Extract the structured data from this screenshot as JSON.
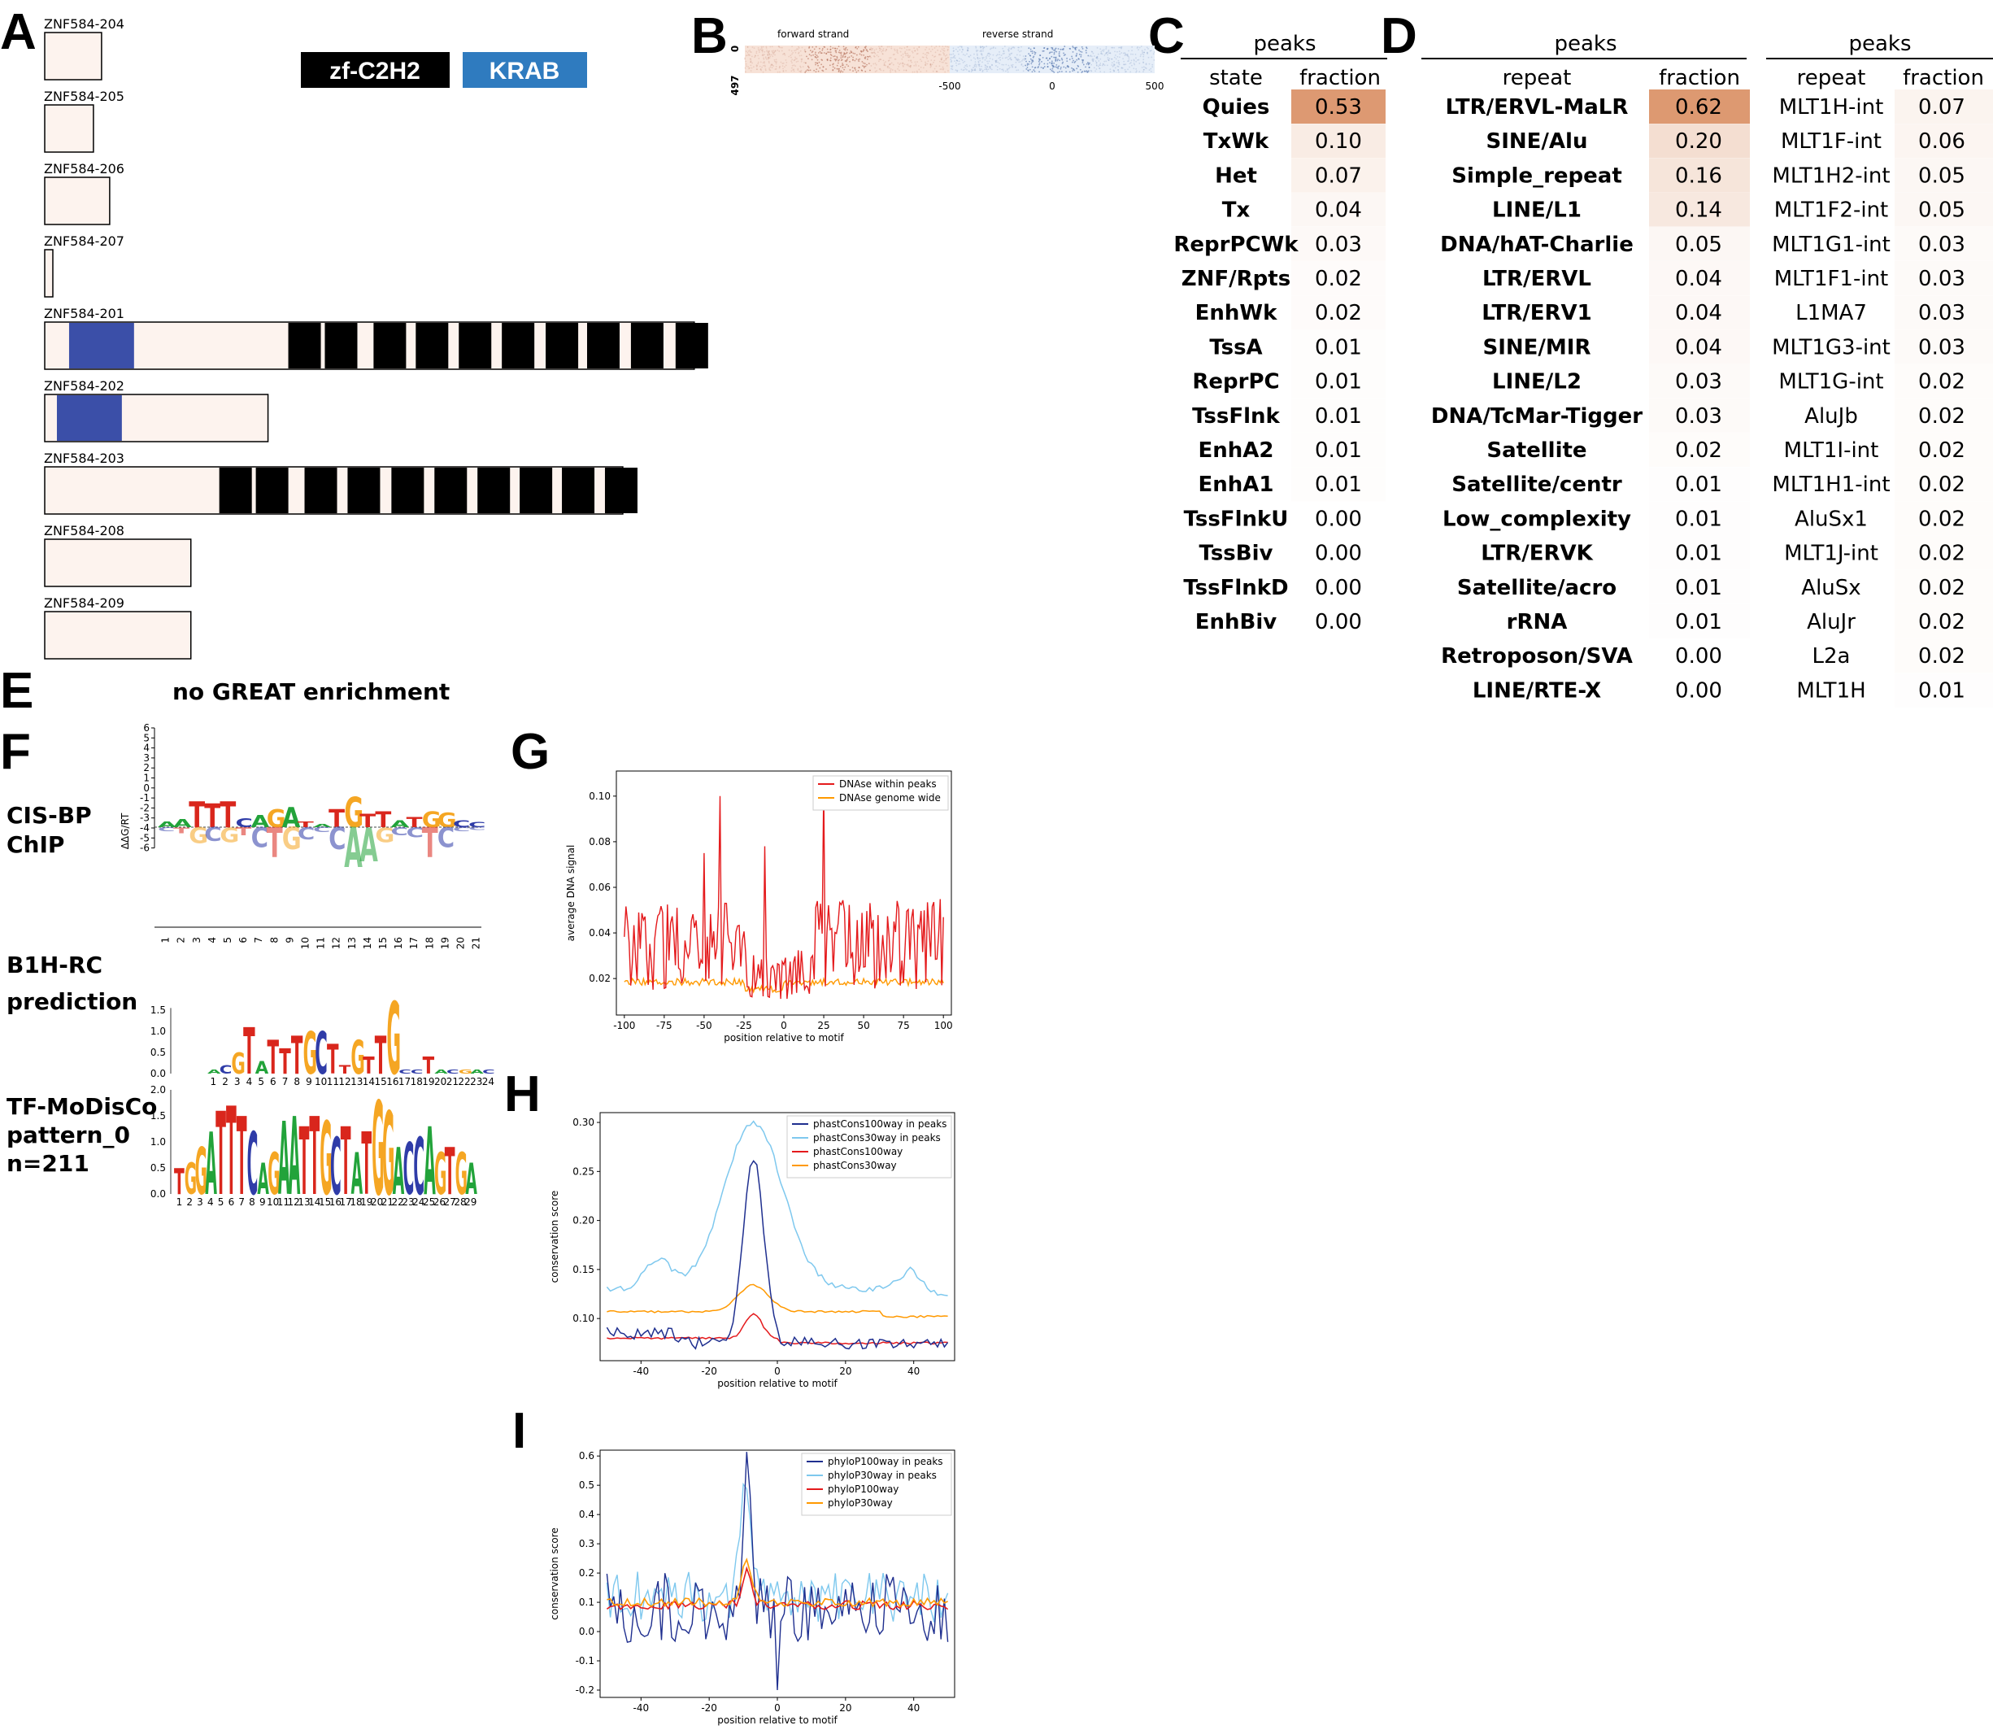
{
  "panels": {
    "A": "A",
    "B": "B",
    "C": "C",
    "D": "D",
    "E": "E",
    "F": "F",
    "G": "G",
    "H": "H",
    "I": "I"
  },
  "panelA": {
    "domain_legend": [
      {
        "name": "zf-C2H2",
        "color": "#000000"
      },
      {
        "name": "KRAB",
        "color": "#2f7bbf"
      }
    ],
    "isoforms": [
      {
        "name": "ZNF584-204",
        "length": 70
      },
      {
        "name": "ZNF584-205",
        "length": 60
      },
      {
        "name": "ZNF584-206",
        "length": 80
      },
      {
        "name": "ZNF584-207",
        "length": 10
      },
      {
        "name": "ZNF584-201",
        "length": 800,
        "krab": [
          30,
          110
        ],
        "zf": [
          300,
          345,
          405,
          457,
          510,
          563,
          617,
          668,
          722,
          777
        ]
      },
      {
        "name": "ZNF584-202",
        "length": 275,
        "krab": [
          15,
          95
        ]
      },
      {
        "name": "ZNF584-203",
        "length": 712,
        "zf": [
          215,
          260,
          320,
          373,
          427,
          480,
          533,
          585,
          637,
          690
        ]
      },
      {
        "name": "ZNF584-208",
        "length": 180
      },
      {
        "name": "ZNF584-209",
        "length": 180
      }
    ],
    "colors": {
      "fill": "#fdf3ee",
      "krab": "#3b4fa8",
      "zf": "#000000"
    }
  },
  "panelB": {
    "forward": "forward strand",
    "reverse": "reverse strand",
    "y_top": "0",
    "y_bottom": "497",
    "x_ticks": [
      "-500",
      "0",
      "500"
    ]
  },
  "panelC": {
    "header": "peaks",
    "col1": "state",
    "col2": "fraction",
    "rows": [
      {
        "state": "Quies",
        "fraction": "0.53",
        "v": 0.53
      },
      {
        "state": "TxWk",
        "fraction": "0.10",
        "v": 0.1
      },
      {
        "state": "Het",
        "fraction": "0.07",
        "v": 0.07
      },
      {
        "state": "Tx",
        "fraction": "0.04",
        "v": 0.04
      },
      {
        "state": "ReprPCWk",
        "fraction": "0.03",
        "v": 0.03
      },
      {
        "state": "ZNF/Rpts",
        "fraction": "0.02",
        "v": 0.02
      },
      {
        "state": "EnhWk",
        "fraction": "0.02",
        "v": 0.02
      },
      {
        "state": "TssA",
        "fraction": "0.01",
        "v": 0.01
      },
      {
        "state": "ReprPC",
        "fraction": "0.01",
        "v": 0.01
      },
      {
        "state": "TssFlnk",
        "fraction": "0.01",
        "v": 0.01
      },
      {
        "state": "EnhA2",
        "fraction": "0.01",
        "v": 0.01
      },
      {
        "state": "EnhA1",
        "fraction": "0.01",
        "v": 0.01
      },
      {
        "state": "TssFlnkU",
        "fraction": "0.00",
        "v": 0.0
      },
      {
        "state": "TssBiv",
        "fraction": "0.00",
        "v": 0.0
      },
      {
        "state": "TssFlnkD",
        "fraction": "0.00",
        "v": 0.0
      },
      {
        "state": "EnhBiv",
        "fraction": "0.00",
        "v": 0.0
      }
    ]
  },
  "panelD": {
    "header": "peaks",
    "col1": "repeat",
    "col2": "fraction",
    "families": [
      {
        "name": "LTR/ERVL-MaLR",
        "fraction": "0.62",
        "v": 0.62
      },
      {
        "name": "SINE/Alu",
        "fraction": "0.20",
        "v": 0.2
      },
      {
        "name": "Simple_repeat",
        "fraction": "0.16",
        "v": 0.16
      },
      {
        "name": "LINE/L1",
        "fraction": "0.14",
        "v": 0.14
      },
      {
        "name": "DNA/hAT-Charlie",
        "fraction": "0.05",
        "v": 0.05
      },
      {
        "name": "LTR/ERVL",
        "fraction": "0.04",
        "v": 0.04
      },
      {
        "name": "LTR/ERV1",
        "fraction": "0.04",
        "v": 0.04
      },
      {
        "name": "SINE/MIR",
        "fraction": "0.04",
        "v": 0.04
      },
      {
        "name": "LINE/L2",
        "fraction": "0.03",
        "v": 0.03
      },
      {
        "name": "DNA/TcMar-Tigger",
        "fraction": "0.03",
        "v": 0.03
      },
      {
        "name": "Satellite",
        "fraction": "0.02",
        "v": 0.02
      },
      {
        "name": "Satellite/centr",
        "fraction": "0.01",
        "v": 0.01
      },
      {
        "name": "Low_complexity",
        "fraction": "0.01",
        "v": 0.01
      },
      {
        "name": "LTR/ERVK",
        "fraction": "0.01",
        "v": 0.01
      },
      {
        "name": "Satellite/acro",
        "fraction": "0.01",
        "v": 0.01
      },
      {
        "name": "rRNA",
        "fraction": "0.01",
        "v": 0.01
      },
      {
        "name": "Retroposon/SVA",
        "fraction": "0.00",
        "v": 0.0
      },
      {
        "name": "LINE/RTE-X",
        "fraction": "0.00",
        "v": 0.0
      }
    ],
    "header2": "peaks",
    "col3": "repeat",
    "col4": "fraction",
    "subfamilies": [
      {
        "name": "MLT1H-int",
        "fraction": "0.07",
        "v": 0.07
      },
      {
        "name": "MLT1F-int",
        "fraction": "0.06",
        "v": 0.06
      },
      {
        "name": "MLT1H2-int",
        "fraction": "0.05",
        "v": 0.05
      },
      {
        "name": "MLT1F2-int",
        "fraction": "0.05",
        "v": 0.05
      },
      {
        "name": "MLT1G1-int",
        "fraction": "0.03",
        "v": 0.03
      },
      {
        "name": "MLT1F1-int",
        "fraction": "0.03",
        "v": 0.03
      },
      {
        "name": "L1MA7",
        "fraction": "0.03",
        "v": 0.03
      },
      {
        "name": "MLT1G3-int",
        "fraction": "0.03",
        "v": 0.03
      },
      {
        "name": "MLT1G-int",
        "fraction": "0.02",
        "v": 0.02
      },
      {
        "name": "AluJb",
        "fraction": "0.02",
        "v": 0.02
      },
      {
        "name": "MLT1I-int",
        "fraction": "0.02",
        "v": 0.02
      },
      {
        "name": "MLT1H1-int",
        "fraction": "0.02",
        "v": 0.02
      },
      {
        "name": "AluSx1",
        "fraction": "0.02",
        "v": 0.02
      },
      {
        "name": "MLT1J-int",
        "fraction": "0.02",
        "v": 0.02
      },
      {
        "name": "AluSx",
        "fraction": "0.02",
        "v": 0.02
      },
      {
        "name": "AluJr",
        "fraction": "0.02",
        "v": 0.02
      },
      {
        "name": "L2a",
        "fraction": "0.02",
        "v": 0.02
      },
      {
        "name": "MLT1H",
        "fraction": "0.01",
        "v": 0.01
      }
    ]
  },
  "panelE": {
    "text": "no GREAT enrichment"
  },
  "panelF": {
    "cisbp_label": [
      "CIS-BP",
      "ChIP"
    ],
    "cisbp_ylabel": "ΔΔG/RT",
    "cisbp_yticks": [
      "6",
      "5",
      "4",
      "3",
      "2",
      "1",
      "0",
      "-1",
      "-2",
      "-3",
      "-4",
      "-5",
      "-6"
    ],
    "cisbp_xticks": [
      "1",
      "2",
      "3",
      "4",
      "5",
      "6",
      "7",
      "8",
      "9",
      "10",
      "11",
      "12",
      "13",
      "14",
      "15",
      "16",
      "17",
      "18",
      "19",
      "20",
      "21"
    ],
    "cisbp_top": [
      "A",
      "A",
      "T",
      "T",
      "T",
      "C",
      "A",
      "G",
      "A",
      "T",
      "A",
      "T",
      "G",
      "T",
      "T",
      "A",
      "T",
      "G",
      "G",
      "C",
      "C"
    ],
    "cisbp_topH": [
      0.6,
      0.8,
      2.6,
      2.4,
      2.6,
      0.9,
      1.2,
      1.8,
      2.0,
      0.6,
      0.3,
      1.8,
      3.0,
      1.3,
      1.6,
      0.7,
      1.0,
      1.6,
      1.5,
      0.7,
      0.5
    ],
    "cisbp_topCols": [
      "A",
      "A",
      "T",
      "T",
      "T",
      "C",
      "A",
      "G",
      "A",
      "T",
      "A",
      "T",
      "G",
      "T",
      "T",
      "A",
      "T",
      "G",
      "G",
      "C",
      "C"
    ],
    "b1h_label": [
      "B1H-RC",
      "prediction"
    ],
    "b1h_yticks": [
      "1.5",
      "1.0",
      "0.5",
      "0.0"
    ],
    "b1h_xticks": [
      "1",
      "2",
      "3",
      "4",
      "5",
      "6",
      "7",
      "8",
      "9",
      "10",
      "11",
      "12",
      "13",
      "14",
      "15",
      "16",
      "17",
      "18",
      "19",
      "20",
      "21",
      "22",
      "23",
      "24"
    ],
    "modisco_label": [
      "TF-MoDisCo",
      "pattern_0",
      "n=211"
    ],
    "modisco_yticks": [
      "2.0",
      "1.5",
      "1.0",
      "0.5",
      "0.0"
    ],
    "modisco_xticks": [
      "1",
      "2",
      "3",
      "4",
      "5",
      "6",
      "7",
      "8",
      "9",
      "10",
      "11",
      "12",
      "13",
      "14",
      "15",
      "16",
      "17",
      "18",
      "19",
      "20",
      "21",
      "22",
      "23",
      "24",
      "25",
      "26",
      "27",
      "28",
      "29"
    ]
  },
  "panelG": {
    "legend": [
      "DNAse within peaks",
      "DNAse genome wide"
    ],
    "ylabel": "average DNA signal",
    "xlabel": "position relative to motif",
    "yticks": [
      "0.10",
      "0.08",
      "0.06",
      "0.04",
      "0.02"
    ],
    "xticks": [
      "-100",
      "-75",
      "-50",
      "-25",
      "0",
      "25",
      "50",
      "75",
      "100"
    ]
  },
  "panelH": {
    "legend": [
      "phastCons100way in peaks",
      "phastCons30way in peaks",
      "phastCons100way",
      "phastCons30way"
    ],
    "ylabel": "conservation score",
    "xlabel": "position relative to motif",
    "yticks": [
      "0.30",
      "0.25",
      "0.20",
      "0.15",
      "0.10"
    ],
    "xticks": [
      "-40",
      "-20",
      "0",
      "20",
      "40"
    ]
  },
  "panelI": {
    "legend": [
      "phyloP100way in peaks",
      "phyloP30way in peaks",
      "phyloP100way",
      "phyloP30way"
    ],
    "ylabel": "conservation score",
    "xlabel": "position relative to motif",
    "yticks": [
      "0.6",
      "0.5",
      "0.4",
      "0.3",
      "0.2",
      "0.1",
      "0.0",
      "-0.1",
      "-0.2"
    ],
    "xticks": [
      "-40",
      "-20",
      "0",
      "20",
      "40"
    ]
  },
  "chart_data": [
    {
      "type": "line",
      "panel": "G",
      "series": [
        {
          "name": "DNAse within peaks",
          "color": "#e41a1c",
          "x_range": [
            -100,
            100
          ],
          "y_range": [
            0.01,
            0.1
          ]
        },
        {
          "name": "DNAse genome wide",
          "color": "#ff9900",
          "x_range": [
            -100,
            100
          ],
          "y_range": [
            0.015,
            0.022
          ]
        }
      ],
      "xlim": [
        -105,
        105
      ],
      "ylim": [
        0.005,
        0.11
      ]
    },
    {
      "type": "line",
      "panel": "H",
      "series": [
        {
          "name": "phastCons100way in peaks",
          "color": "#1f2f8f",
          "peak": 0.26,
          "peak_x": -7
        },
        {
          "name": "phastCons30way in peaks",
          "color": "#7ec8ee",
          "peak": 0.3,
          "peak_x": -7
        },
        {
          "name": "phastCons100way",
          "color": "#e41a1c",
          "peak": 0.1,
          "peak_x": -8
        },
        {
          "name": "phastCons30way",
          "color": "#ff9900",
          "peak": 0.13,
          "peak_x": -8
        }
      ],
      "xlim": [
        -52,
        52
      ],
      "ylim": [
        0.06,
        0.31
      ]
    },
    {
      "type": "line",
      "panel": "I",
      "series": [
        {
          "name": "phyloP100way in peaks",
          "color": "#1f2f8f",
          "peak": 0.58,
          "peak_x": -10
        },
        {
          "name": "phyloP30way in peaks",
          "color": "#7ec8ee",
          "peak": 0.52,
          "peak_x": -8
        },
        {
          "name": "phyloP100way",
          "color": "#e41a1c",
          "peak": 0.2,
          "peak_x": -9
        },
        {
          "name": "phyloP30way",
          "color": "#ff9900",
          "peak": 0.25,
          "peak_x": -9
        }
      ],
      "xlim": [
        -52,
        52
      ],
      "ylim": [
        -0.22,
        0.62
      ]
    }
  ]
}
